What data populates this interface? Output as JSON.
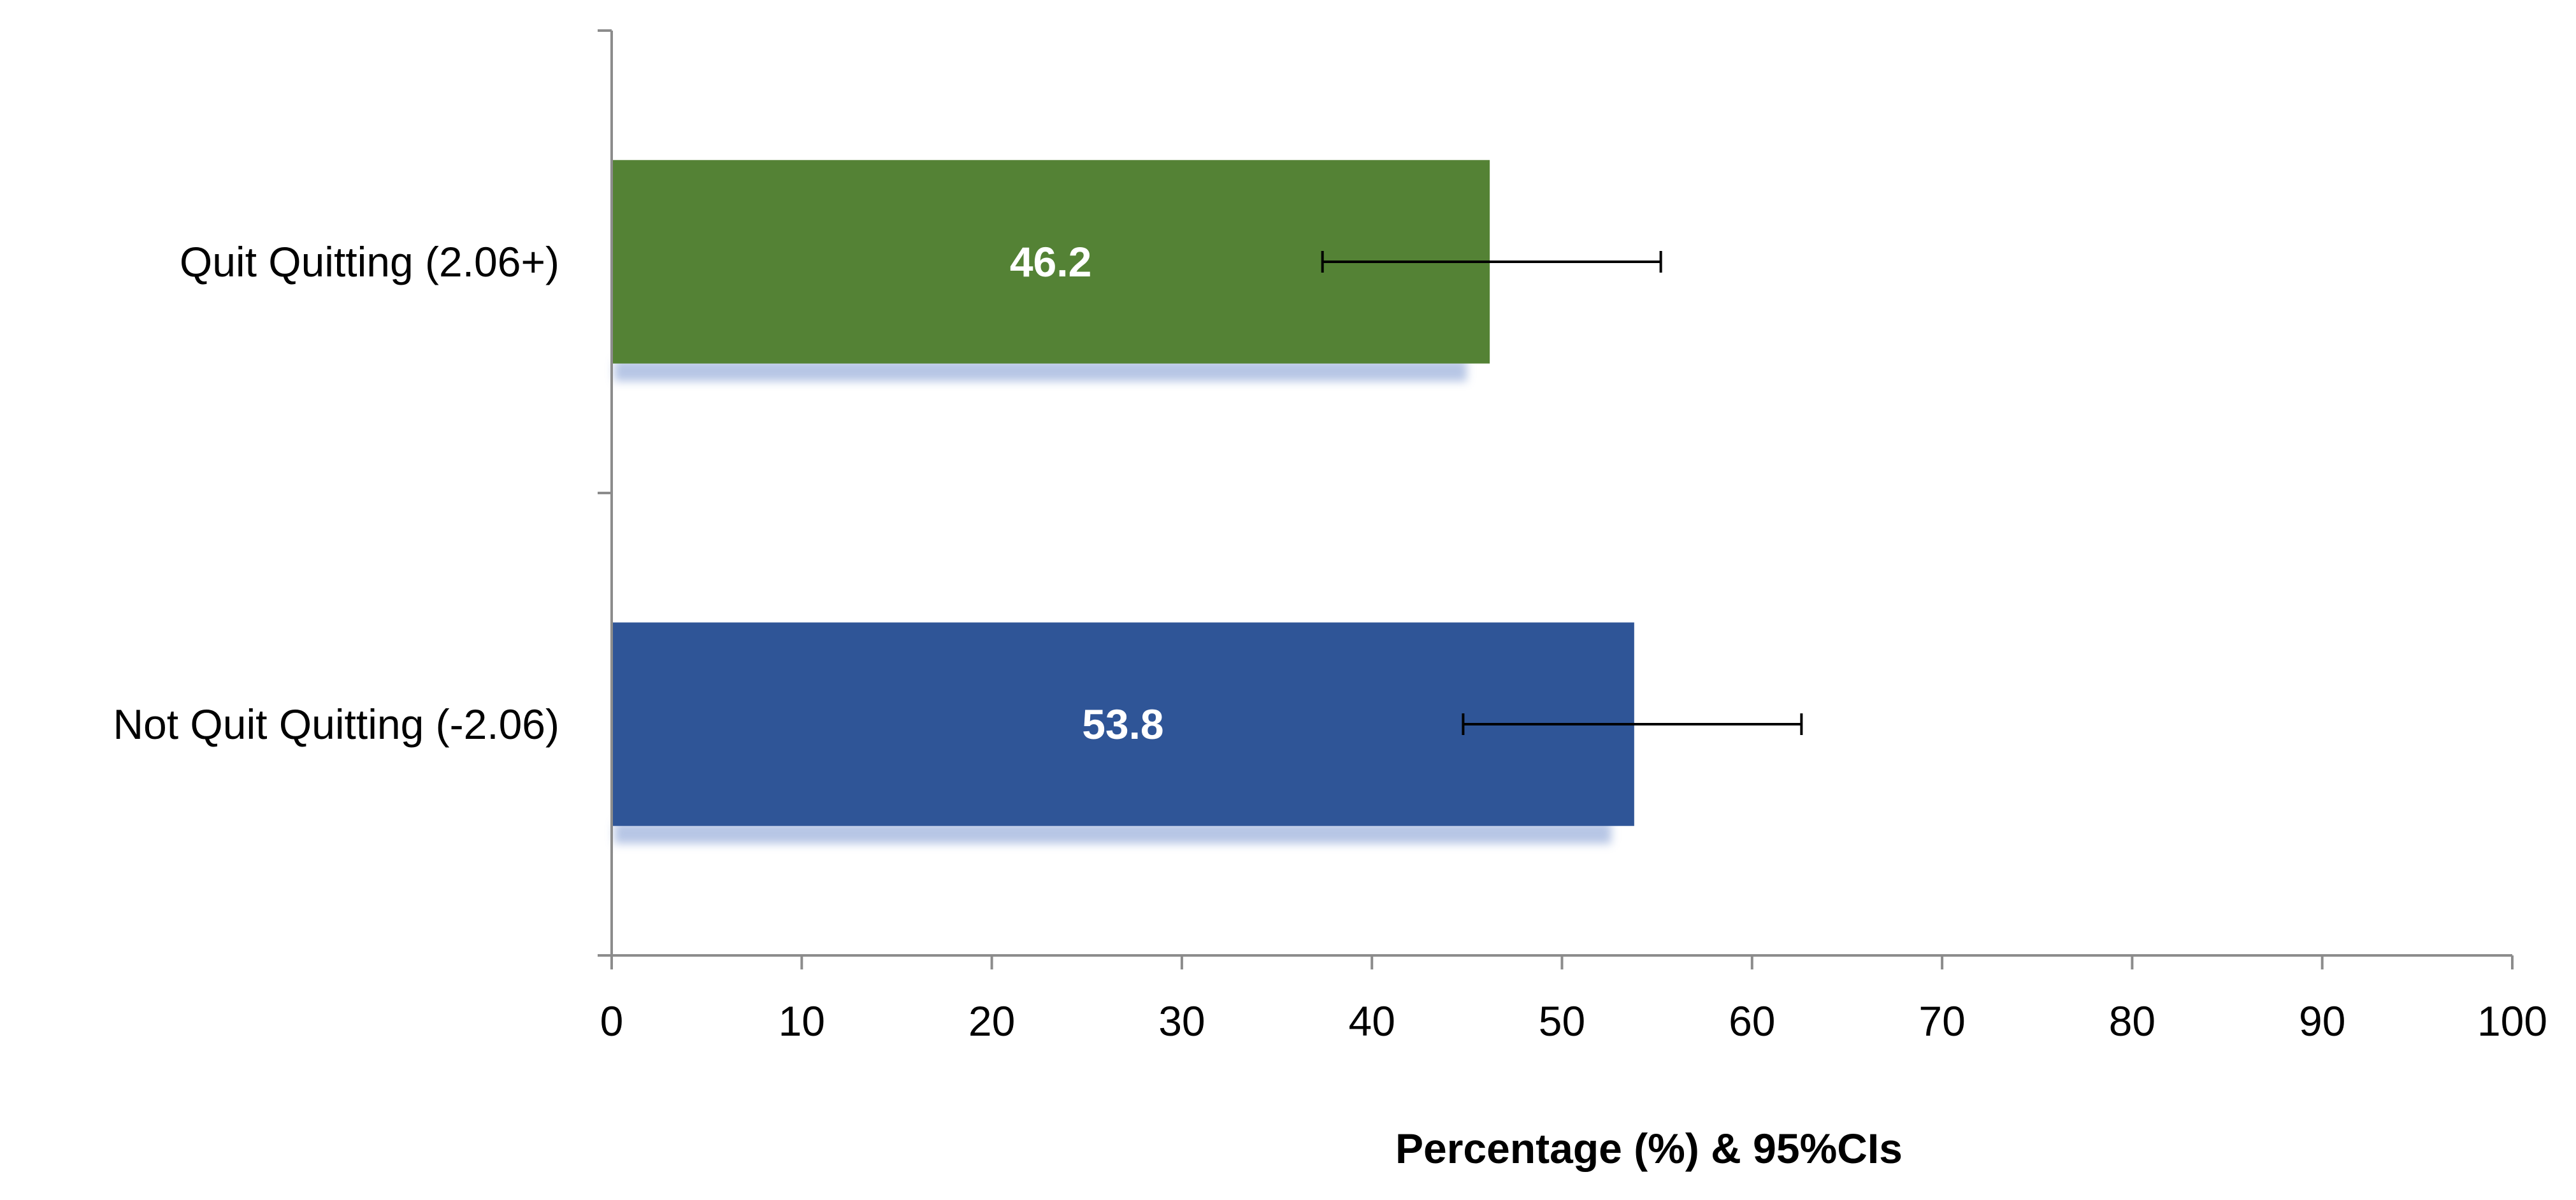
{
  "chart_data": {
    "type": "bar",
    "orientation": "horizontal",
    "categories": [
      "Quit Quitting (2.06+)",
      "Not Quit Quitting (-2.06)"
    ],
    "values": [
      46.2,
      53.8
    ],
    "value_labels": [
      "46.2",
      "53.8"
    ],
    "error_bars": [
      {
        "low": 37.4,
        "high": 55.2
      },
      {
        "low": 44.8,
        "high": 62.6
      }
    ],
    "colors": [
      "#548235",
      "#2f5597"
    ],
    "xlabel": "Percentage (%) & 95%CIs",
    "ylabel": "",
    "xlim": [
      0,
      100
    ],
    "xticks": [
      0,
      10,
      20,
      30,
      40,
      50,
      60,
      70,
      80,
      90,
      100
    ],
    "xtick_labels": [
      "0",
      "10",
      "20",
      "30",
      "40",
      "50",
      "60",
      "70",
      "80",
      "90",
      "100"
    ],
    "grid": false,
    "legend": "none"
  }
}
